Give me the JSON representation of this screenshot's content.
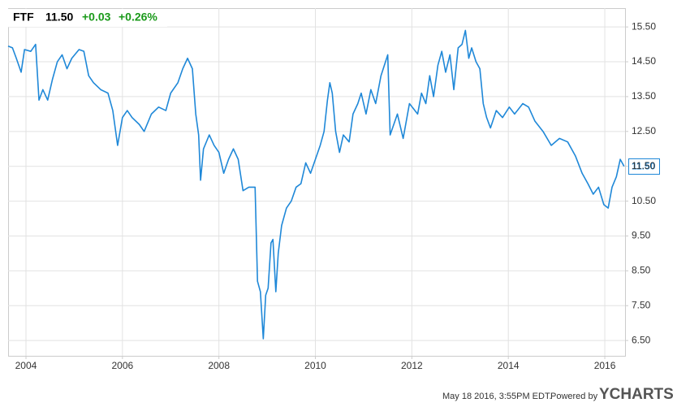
{
  "chart_data": {
    "type": "line",
    "header": {
      "ticker": "FTF",
      "price": "11.50",
      "change": "+0.03",
      "change_pct": "+0.26%"
    },
    "last_value_label": "11.50",
    "footer": {
      "timestamp": "May 18 2016, 3:55PM EDT.",
      "powered": "Powered by",
      "brand": "YCHARTS"
    },
    "color": "#1f88d8",
    "grid": true,
    "xlim": [
      2003.63,
      2016.42
    ],
    "xticks": [
      2004,
      2006,
      2008,
      2010,
      2012,
      2014,
      2016
    ],
    "ylim": [
      6.06,
      16.04
    ],
    "yticks": [
      {
        "value": 6.5,
        "label": "6.50"
      },
      {
        "value": 7.5,
        "label": "7.50"
      },
      {
        "value": 8.5,
        "label": "8.50"
      },
      {
        "value": 9.5,
        "label": "9.50"
      },
      {
        "value": 10.5,
        "label": "10.50"
      },
      {
        "value": 11.5,
        "label": "11.50"
      },
      {
        "value": 12.5,
        "label": "12.50"
      },
      {
        "value": 13.5,
        "label": "13.50"
      },
      {
        "value": 14.5,
        "label": "14.50"
      },
      {
        "value": 15.5,
        "label": "15.50"
      }
    ],
    "x": [
      2003.63,
      2003.72,
      2003.8,
      2003.9,
      2003.97,
      2004.1,
      2004.2,
      2004.27,
      2004.35,
      2004.45,
      2004.55,
      2004.65,
      2004.75,
      2004.85,
      2004.95,
      2005.1,
      2005.2,
      2005.3,
      2005.4,
      2005.55,
      2005.7,
      2005.8,
      2005.9,
      2006.0,
      2006.1,
      2006.2,
      2006.35,
      2006.45,
      2006.6,
      2006.75,
      2006.9,
      2007.0,
      2007.15,
      2007.25,
      2007.35,
      2007.45,
      2007.52,
      2007.58,
      2007.62,
      2007.68,
      2007.8,
      2007.9,
      2008.0,
      2008.1,
      2008.2,
      2008.3,
      2008.4,
      2008.5,
      2008.62,
      2008.75,
      2008.8,
      2008.86,
      2008.92,
      2008.97,
      2009.02,
      2009.08,
      2009.12,
      2009.18,
      2009.23,
      2009.3,
      2009.4,
      2009.5,
      2009.6,
      2009.7,
      2009.8,
      2009.9,
      2010.0,
      2010.1,
      2010.18,
      2010.25,
      2010.3,
      2010.35,
      2010.42,
      2010.5,
      2010.58,
      2010.7,
      2010.78,
      2010.88,
      2010.95,
      2011.05,
      2011.15,
      2011.25,
      2011.36,
      2011.5,
      2011.55,
      2011.7,
      2011.82,
      2011.95,
      2012.12,
      2012.2,
      2012.29,
      2012.37,
      2012.45,
      2012.54,
      2012.62,
      2012.7,
      2012.79,
      2012.87,
      2012.96,
      2013.04,
      2013.11,
      2013.18,
      2013.24,
      2013.33,
      2013.41,
      2013.48,
      2013.55,
      2013.63,
      2013.75,
      2013.88,
      2014.02,
      2014.13,
      2014.3,
      2014.42,
      2014.55,
      2014.72,
      2014.89,
      2015.06,
      2015.23,
      2015.39,
      2015.53,
      2015.65,
      2015.76,
      2015.87,
      2015.98,
      2016.07,
      2016.15,
      2016.24,
      2016.32,
      2016.4
    ],
    "values": [
      14.95,
      14.9,
      14.6,
      14.2,
      14.85,
      14.8,
      15.0,
      13.4,
      13.7,
      13.4,
      14.0,
      14.5,
      14.7,
      14.3,
      14.6,
      14.85,
      14.8,
      14.1,
      13.9,
      13.7,
      13.6,
      13.1,
      12.1,
      12.9,
      13.1,
      12.9,
      12.7,
      12.5,
      13.0,
      13.2,
      13.1,
      13.6,
      13.9,
      14.3,
      14.6,
      14.3,
      13.0,
      12.4,
      11.1,
      12.0,
      12.4,
      12.1,
      11.9,
      11.3,
      11.7,
      12.0,
      11.7,
      10.8,
      10.9,
      10.9,
      8.2,
      7.9,
      6.55,
      7.8,
      8.0,
      9.3,
      9.4,
      7.9,
      9.0,
      9.8,
      10.3,
      10.5,
      10.9,
      11.0,
      11.6,
      11.3,
      11.7,
      12.1,
      12.5,
      13.4,
      13.9,
      13.6,
      12.5,
      11.9,
      12.4,
      12.2,
      13.0,
      13.3,
      13.6,
      13.0,
      13.7,
      13.3,
      14.1,
      14.7,
      12.4,
      13.0,
      12.3,
      13.3,
      13.0,
      13.6,
      13.3,
      14.1,
      13.5,
      14.4,
      14.8,
      14.2,
      14.7,
      13.7,
      14.9,
      15.0,
      15.4,
      14.6,
      14.9,
      14.5,
      14.3,
      13.3,
      12.9,
      12.6,
      13.1,
      12.9,
      13.2,
      13.0,
      13.3,
      13.2,
      12.8,
      12.5,
      12.1,
      12.3,
      12.2,
      11.8,
      11.3,
      11.0,
      10.7,
      10.9,
      10.4,
      10.3,
      10.9,
      11.2,
      11.7,
      11.5
    ]
  }
}
